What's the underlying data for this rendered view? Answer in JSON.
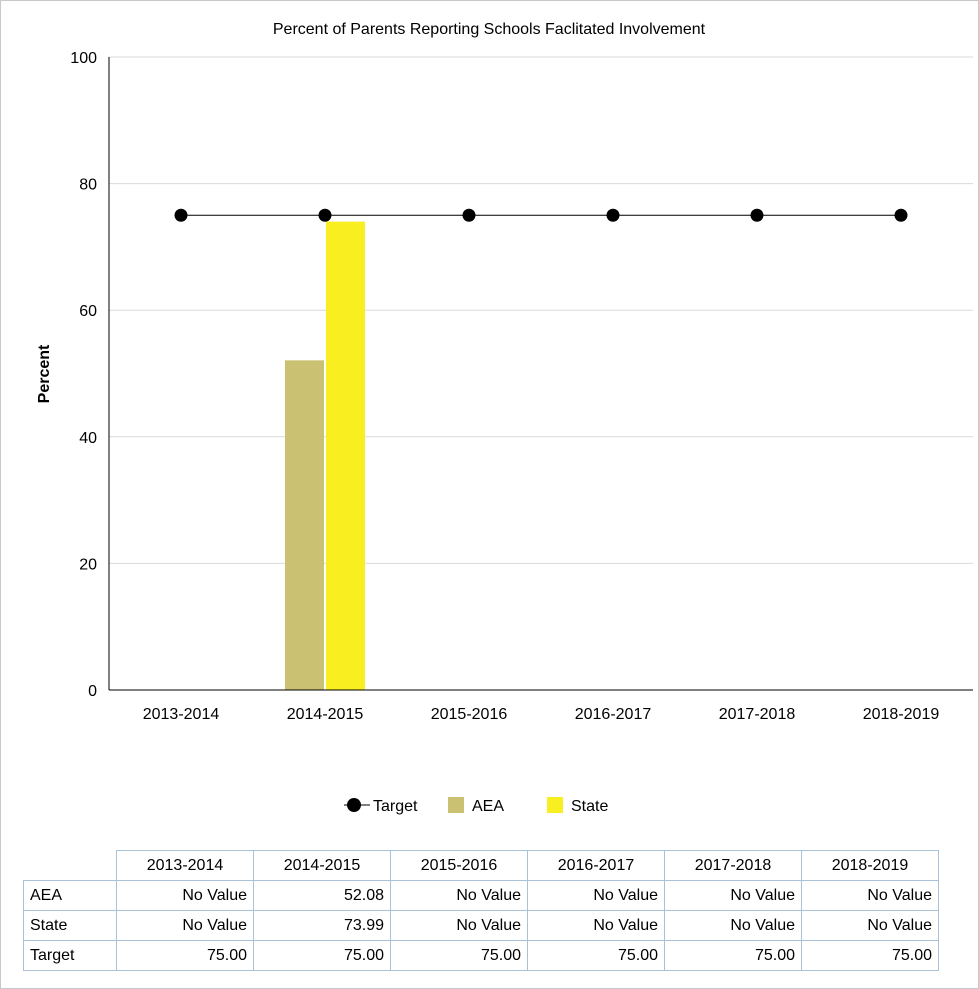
{
  "chart_data": {
    "type": "bar",
    "title": "Percent of Parents Reporting Schools Faclitated Involvement",
    "ylabel": "Percent",
    "xlabel": "",
    "ylim": [
      0,
      100
    ],
    "yticks": [
      0,
      20,
      40,
      60,
      80,
      100
    ],
    "grid": true,
    "legend_position": "bottom",
    "categories": [
      "2013-2014",
      "2014-2015",
      "2015-2016",
      "2016-2017",
      "2017-2018",
      "2018-2019"
    ],
    "series": [
      {
        "name": "AEA",
        "kind": "bar",
        "color": "#cbc173",
        "values": [
          null,
          52.08,
          null,
          null,
          null,
          null
        ]
      },
      {
        "name": "State",
        "kind": "bar",
        "color": "#f8ee20",
        "values": [
          null,
          73.99,
          null,
          null,
          null,
          null
        ]
      },
      {
        "name": "Target",
        "kind": "line",
        "color": "#000000",
        "values": [
          75,
          75,
          75,
          75,
          75,
          75
        ]
      }
    ]
  },
  "legend": [
    {
      "name": "Target",
      "marker": "line-dot",
      "color": "#000000"
    },
    {
      "name": "AEA",
      "marker": "square",
      "color": "#cbc173"
    },
    {
      "name": "State",
      "marker": "square",
      "color": "#f8ee20"
    }
  ],
  "table": {
    "headers": [
      "2013-2014",
      "2014-2015",
      "2015-2016",
      "2016-2017",
      "2017-2018",
      "2018-2019"
    ],
    "rows": [
      {
        "label": "AEA",
        "values": [
          "No Value",
          "52.08",
          "No Value",
          "No Value",
          "No Value",
          "No Value"
        ]
      },
      {
        "label": "State",
        "values": [
          "No Value",
          "73.99",
          "No Value",
          "No Value",
          "No Value",
          "No Value"
        ]
      },
      {
        "label": "Target",
        "values": [
          "75.00",
          "75.00",
          "75.00",
          "75.00",
          "75.00",
          "75.00"
        ]
      }
    ]
  }
}
